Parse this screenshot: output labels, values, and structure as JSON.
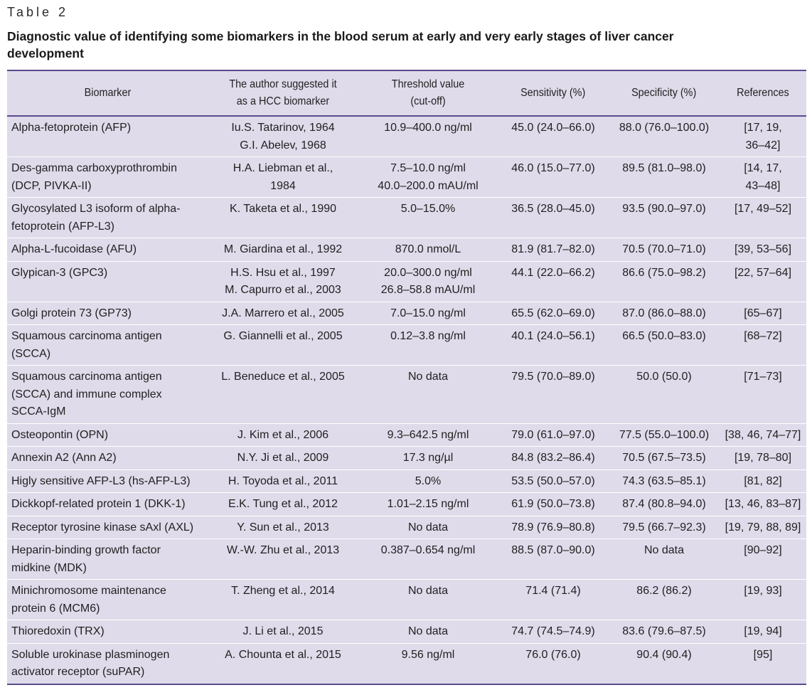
{
  "table_label": "Table 2",
  "caption": "Diagnostic value of identifying some biomarkers in the blood serum at early and very early stages of liver cancer development",
  "headers": [
    "Biomarker",
    "The author suggested it as a HCC biomarker",
    "Threshold value (cut-off)",
    "Sensitivity (%)",
    "Specificity (%)",
    "References"
  ],
  "rows": [
    [
      "Alpha-fetoprotein (AFP)",
      "Iu.S. Tatarinov, 1964\nG.I. Abelev, 1968",
      "10.9–400.0 ng/ml",
      "45.0 (24.0–66.0)",
      "88.0 (76.0–100.0)",
      "[17, 19,\n36–42]"
    ],
    [
      "Des-gamma carboxyprothrombin\n(DCP, PIVKA-II)",
      "H.A. Liebman et al.,\n1984",
      "7.5–10.0 ng/ml\n40.0–200.0 mAU/ml",
      "46.0 (15.0–77.0)",
      "89.5 (81.0–98.0)",
      "[14, 17,\n43–48]"
    ],
    [
      "Glycosylated L3 isoform of alpha-\nfetoprotein (AFP-L3)",
      "K. Taketa et al., 1990",
      "5.0–15.0%",
      "36.5 (28.0–45.0)",
      "93.5 (90.0–97.0)",
      "[17, 49–52]"
    ],
    [
      "Alpha-L-fucoidase (AFU)",
      "M. Giardina et al., 1992",
      "870.0 nmol/L",
      "81.9 (81.7–82.0)",
      "70.5 (70.0–71.0)",
      "[39, 53–56]"
    ],
    [
      "Glypican-3 (GPC3)",
      "H.S. Hsu et al., 1997\nM. Capurro et al., 2003",
      "20.0–300.0 ng/ml\n26.8–58.8 mAU/ml",
      "44.1 (22.0–66.2)",
      "86.6 (75.0–98.2)",
      "[22, 57–64]"
    ],
    [
      "Golgi protein 73 (GP73)",
      "J.A. Marrero et al., 2005",
      "7.0–15.0 ng/ml",
      "65.5 (62.0–69.0)",
      "87.0 (86.0–88.0)",
      "[65–67]"
    ],
    [
      "Squamous carcinoma antigen\n(SCCA)",
      "G. Giannelli et al., 2005",
      "0.12–3.8 ng/ml",
      "40.1 (24.0–56.1)",
      "66.5 (50.0–83.0)",
      "[68–72]"
    ],
    [
      "Squamous carcinoma antigen\n(SCCA) and immune complex\nSCCA-IgM",
      "L. Beneduce et al., 2005",
      "No data",
      "79.5 (70.0–89.0)",
      "50.0 (50.0)",
      "[71–73]"
    ],
    [
      "Osteopontin (OPN)",
      "J. Kim et al., 2006",
      "9.3–642.5 ng/ml",
      "79.0 (61.0–97.0)",
      "77.5 (55.0–100.0)",
      "[38, 46, 74–77]"
    ],
    [
      "Annexin A2 (Ann A2)",
      "N.Y. Ji et al., 2009",
      "17.3 ng/µl",
      "84.8 (83.2–86.4)",
      "70.5 (67.5–73.5)",
      "[19, 78–80]"
    ],
    [
      "Higly sensitive AFP-L3 (hs-AFP-L3)",
      "H. Toyoda et al., 2011",
      "5.0%",
      "53.5 (50.0–57.0)",
      "74.3 (63.5–85.1)",
      "[81, 82]"
    ],
    [
      "Dickkopf-related protein 1 (DKK-1)",
      "E.K. Tung et al., 2012",
      "1.01–2.15 ng/ml",
      "61.9 (50.0–73.8)",
      "87.4 (80.8–94.0)",
      "[13, 46, 83–87]"
    ],
    [
      "Receptor tyrosine kinase sAxl (AXL)",
      "Y. Sun et al., 2013",
      "No data",
      "78.9 (76.9–80.8)",
      "79.5 (66.7–92.3)",
      "[19, 79, 88, 89]"
    ],
    [
      "Heparin-binding growth factor\nmidkine (MDK)",
      "W.-W. Zhu et al., 2013",
      "0.387–0.654 ng/ml",
      "88.5 (87.0–90.0)",
      "No data",
      "[90–92]"
    ],
    [
      "Minichromosome maintenance\nprotein 6 (MCM6)",
      "T. Zheng et al., 2014",
      "No data",
      "71.4 (71.4)",
      "86.2 (86.2)",
      "[19, 93]"
    ],
    [
      "Thioredoxin (TRX)",
      "J. Li et al., 2015",
      "No data",
      "74.7 (74.5–74.9)",
      "83.6 (79.6–87.5)",
      "[19, 94]"
    ],
    [
      "Soluble urokinase plasminogen\nactivator receptor (suPAR)",
      "A. Chounta et al., 2015",
      "9.56 ng/ml",
      "76.0 (76.0)",
      "90.4 (90.4)",
      "[95]"
    ]
  ],
  "colors": {
    "rule": "#5a4a8e",
    "table_bg": "#dfdbea",
    "row_divider": "#ffffff"
  }
}
